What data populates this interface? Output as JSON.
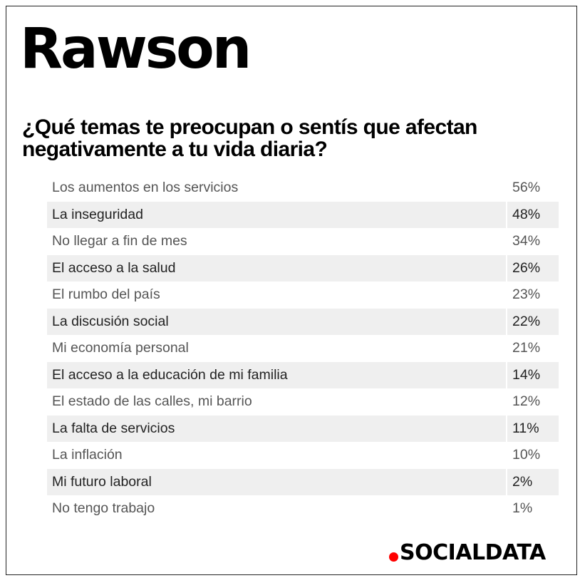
{
  "title": "Rawson",
  "question": "¿Qué temas te preocupan o sentís que afectan negativamente a tu vida diaria?",
  "brand": {
    "name": "SOCIALDATA",
    "dot_color": "#ff0000"
  },
  "chart_data": {
    "type": "table",
    "title": "¿Qué temas te preocupan o sentís que afectan negativamente a tu vida diaria?",
    "rows": [
      {
        "label": "Los aumentos en los servicios",
        "value": "56%"
      },
      {
        "label": "La inseguridad",
        "value": "48%"
      },
      {
        "label": "No llegar a fin de mes",
        "value": "34%"
      },
      {
        "label": "El acceso a la salud",
        "value": "26%"
      },
      {
        "label": "El rumbo del país",
        "value": "23%"
      },
      {
        "label": "La discusión social",
        "value": "22%"
      },
      {
        "label": "Mi economía personal",
        "value": "21%"
      },
      {
        "label": "El acceso a la educación de mi familia",
        "value": "14%"
      },
      {
        "label": "El estado de las calles, mi barrio",
        "value": "12%"
      },
      {
        "label": "La falta de servicios",
        "value": "11%"
      },
      {
        "label": "La inflación",
        "value": "10%"
      },
      {
        "label": "Mi futuro laboral",
        "value": "2%"
      },
      {
        "label": "No tengo trabajo",
        "value": "1%"
      }
    ]
  }
}
